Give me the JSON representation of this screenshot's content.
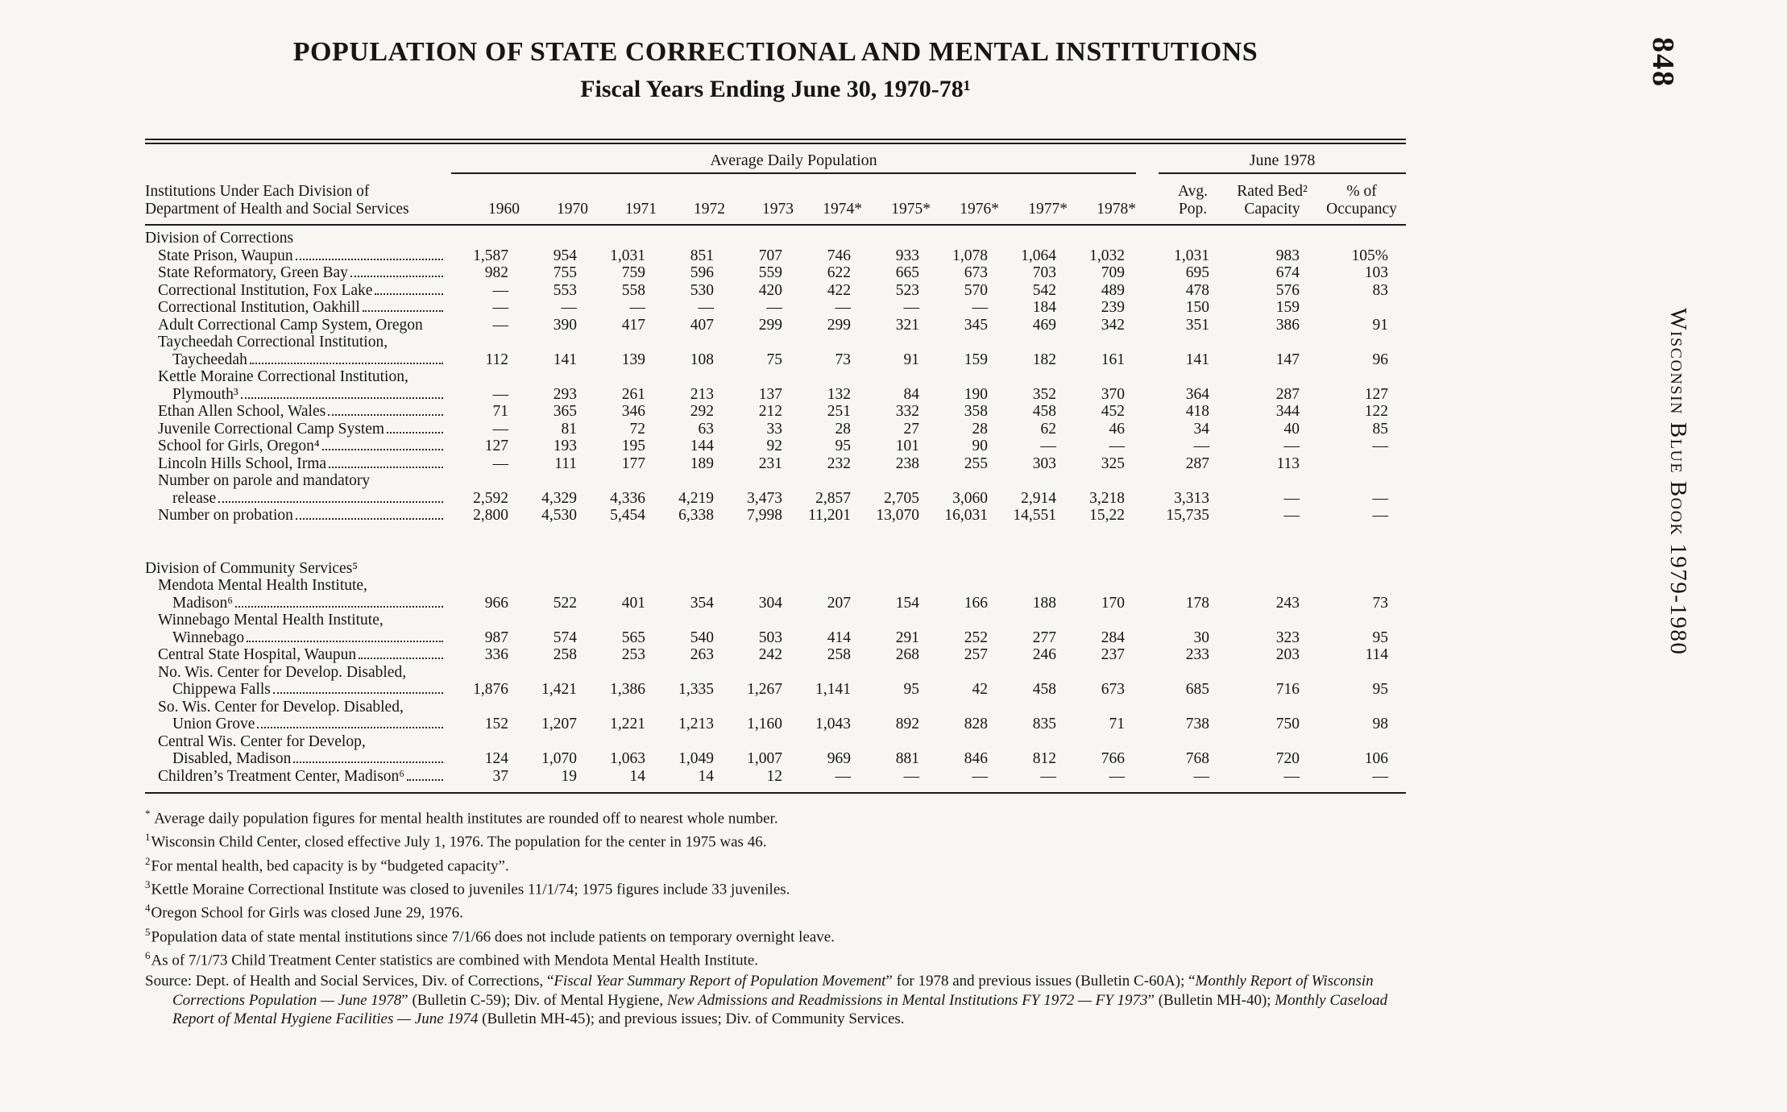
{
  "page": {
    "number": "848",
    "side_text": "Wisconsin Blue Book 1979-1980"
  },
  "colors": {
    "paper": "#f7f6f2",
    "ink": "#161616"
  },
  "title": "POPULATION OF STATE CORRECTIONAL AND MENTAL INSTITUTIONS",
  "subtitle": "Fiscal Years Ending June 30, 1970-78¹",
  "table": {
    "group_headers": [
      "Average Daily Population",
      "June 1978"
    ],
    "stub_header": [
      "Institutions Under Each Division of",
      "Department of Health and Social Services"
    ],
    "year_columns": [
      "1960",
      "1970",
      "1971",
      "1972",
      "1973",
      "1974*",
      "1975*",
      "1976*",
      "1977*",
      "1978*"
    ],
    "june_columns": [
      [
        "Avg.",
        "Pop."
      ],
      [
        "Rated Bed²",
        "Capacity"
      ],
      [
        "% of",
        "Occupancy"
      ]
    ],
    "sections": [
      {
        "heading": "Division of Corrections",
        "rows": [
          {
            "lines": [
              {
                "text": "State Prison, Waupun",
                "dots": true,
                "indent": 1
              }
            ],
            "values": [
              "1,587",
              "954",
              "1,031",
              "851",
              "707",
              "746",
              "933",
              "1,078",
              "1,064",
              "1,032",
              "1,031",
              "983",
              "105%"
            ]
          },
          {
            "lines": [
              {
                "text": "State Reformatory, Green Bay",
                "dots": true,
                "indent": 1
              }
            ],
            "values": [
              "982",
              "755",
              "759",
              "596",
              "559",
              "622",
              "665",
              "673",
              "703",
              "709",
              "695",
              "674",
              "103"
            ]
          },
          {
            "lines": [
              {
                "text": "Correctional Institution, Fox Lake",
                "dots": true,
                "indent": 1
              }
            ],
            "values": [
              "—",
              "553",
              "558",
              "530",
              "420",
              "422",
              "523",
              "570",
              "542",
              "489",
              "478",
              "576",
              "83"
            ]
          },
          {
            "lines": [
              {
                "text": "Correctional Institution, Oakhill",
                "dots": true,
                "indent": 1
              }
            ],
            "values": [
              "—",
              "—",
              "—",
              "—",
              "—",
              "—",
              "—",
              "—",
              "184",
              "239",
              "150",
              "159",
              ""
            ]
          },
          {
            "lines": [
              {
                "text": "Adult Correctional Camp System, Oregon",
                "dots": false,
                "indent": 1
              }
            ],
            "values": [
              "—",
              "390",
              "417",
              "407",
              "299",
              "299",
              "321",
              "345",
              "469",
              "342",
              "351",
              "386",
              "91"
            ]
          },
          {
            "lines": [
              {
                "text": "Taycheedah Correctional Institution,",
                "dots": false,
                "indent": 1
              },
              {
                "text": "Taycheedah",
                "dots": true,
                "indent": 2
              }
            ],
            "values": [
              "112",
              "141",
              "139",
              "108",
              "75",
              "73",
              "91",
              "159",
              "182",
              "161",
              "141",
              "147",
              "96"
            ]
          },
          {
            "lines": [
              {
                "text": "Kettle Moraine Correctional Institution,",
                "dots": false,
                "indent": 1
              },
              {
                "text": "Plymouth³",
                "dots": true,
                "indent": 2
              }
            ],
            "values": [
              "—",
              "293",
              "261",
              "213",
              "137",
              "132",
              "84",
              "190",
              "352",
              "370",
              "364",
              "287",
              "127"
            ]
          },
          {
            "lines": [
              {
                "text": "Ethan Allen School, Wales",
                "dots": true,
                "indent": 1
              }
            ],
            "values": [
              "71",
              "365",
              "346",
              "292",
              "212",
              "251",
              "332",
              "358",
              "458",
              "452",
              "418",
              "344",
              "122"
            ]
          },
          {
            "lines": [
              {
                "text": "Juvenile Correctional Camp System",
                "dots": true,
                "indent": 1
              }
            ],
            "values": [
              "—",
              "81",
              "72",
              "63",
              "33",
              "28",
              "27",
              "28",
              "62",
              "46",
              "34",
              "40",
              "85"
            ]
          },
          {
            "lines": [
              {
                "text": "School for Girls, Oregon⁴",
                "dots": true,
                "indent": 1
              }
            ],
            "values": [
              "127",
              "193",
              "195",
              "144",
              "92",
              "95",
              "101",
              "90",
              "—",
              "—",
              "—",
              "—",
              "—"
            ]
          },
          {
            "lines": [
              {
                "text": "Lincoln Hills School, Irma",
                "dots": true,
                "indent": 1
              }
            ],
            "values": [
              "—",
              "111",
              "177",
              "189",
              "231",
              "232",
              "238",
              "255",
              "303",
              "325",
              "287",
              "113",
              ""
            ]
          },
          {
            "lines": [
              {
                "text": "Number on parole and mandatory",
                "dots": false,
                "indent": 1
              },
              {
                "text": "release",
                "dots": true,
                "indent": 2
              }
            ],
            "values": [
              "2,592",
              "4,329",
              "4,336",
              "4,219",
              "3,473",
              "2,857",
              "2,705",
              "3,060",
              "2,914",
              "3,218",
              "3,313",
              "—",
              "—"
            ]
          },
          {
            "lines": [
              {
                "text": "Number on probation",
                "dots": true,
                "indent": 1
              }
            ],
            "values": [
              "2,800",
              "4,530",
              "5,454",
              "6,338",
              "7,998",
              "11,201",
              "13,070",
              "16,031",
              "14,551",
              "15,22",
              "15,735",
              "—",
              "—"
            ]
          }
        ]
      },
      {
        "heading": "Division of Community Services⁵",
        "rows": [
          {
            "lines": [
              {
                "text": "Mendota Mental Health Institute,",
                "dots": false,
                "indent": 1
              },
              {
                "text": "Madison⁶",
                "dots": true,
                "indent": 2
              }
            ],
            "values": [
              "966",
              "522",
              "401",
              "354",
              "304",
              "207",
              "154",
              "166",
              "188",
              "170",
              "178",
              "243",
              "73"
            ]
          },
          {
            "lines": [
              {
                "text": "Winnebago Mental Health Institute,",
                "dots": false,
                "indent": 1
              },
              {
                "text": "Winnebago",
                "dots": true,
                "indent": 2
              }
            ],
            "values": [
              "987",
              "574",
              "565",
              "540",
              "503",
              "414",
              "291",
              "252",
              "277",
              "284",
              "30",
              "323",
              "95"
            ]
          },
          {
            "lines": [
              {
                "text": "Central State Hospital, Waupun",
                "dots": true,
                "indent": 1
              }
            ],
            "values": [
              "336",
              "258",
              "253",
              "263",
              "242",
              "258",
              "268",
              "257",
              "246",
              "237",
              "233",
              "203",
              "114"
            ]
          },
          {
            "lines": [
              {
                "text": "No. Wis. Center for Develop. Disabled,",
                "dots": false,
                "indent": 1
              },
              {
                "text": "Chippewa Falls",
                "dots": true,
                "indent": 2
              }
            ],
            "values": [
              "1,876",
              "1,421",
              "1,386",
              "1,335",
              "1,267",
              "1,141",
              "95",
              "42",
              "458",
              "673",
              "685",
              "716",
              "95"
            ]
          },
          {
            "lines": [
              {
                "text": "So. Wis. Center for Develop. Disabled,",
                "dots": false,
                "indent": 1
              },
              {
                "text": "Union Grove",
                "dots": true,
                "indent": 2
              }
            ],
            "values": [
              "152",
              "1,207",
              "1,221",
              "1,213",
              "1,160",
              "1,043",
              "892",
              "828",
              "835",
              "71",
              "738",
              "750",
              "98"
            ]
          },
          {
            "lines": [
              {
                "text": "Central Wis. Center for Develop,",
                "dots": false,
                "indent": 1
              },
              {
                "text": "Disabled, Madison",
                "dots": true,
                "indent": 2
              }
            ],
            "values": [
              "124",
              "1,070",
              "1,063",
              "1,049",
              "1,007",
              "969",
              "881",
              "846",
              "812",
              "766",
              "768",
              "720",
              "106"
            ]
          },
          {
            "lines": [
              {
                "text": "Children’s Treatment Center, Madison⁶",
                "dots": true,
                "indent": 1
              }
            ],
            "values": [
              "37",
              "19",
              "14",
              "14",
              "12",
              "—",
              "—",
              "—",
              "—",
              "—",
              "—",
              "—",
              "—"
            ]
          }
        ]
      }
    ]
  },
  "footnotes": [
    {
      "marker": "*",
      "text": " Average daily population figures for mental health institutes are rounded off to nearest whole number."
    },
    {
      "marker": "1",
      "text": "Wisconsin Child Center, closed effective July 1, 1976. The population for the center in 1975 was 46."
    },
    {
      "marker": "2",
      "text": "For mental health, bed capacity is by “budgeted capacity”."
    },
    {
      "marker": "3",
      "text": "Kettle Moraine Correctional Institute was closed to juveniles 11/1/74; 1975 figures include 33 juveniles."
    },
    {
      "marker": "4",
      "text": "Oregon School for Girls was closed June 29, 1976."
    },
    {
      "marker": "5",
      "text": "Population data of state mental institutions since 7/1/66 does not include patients on temporary overnight leave."
    },
    {
      "marker": "6",
      "text": "As of 7/1/73 Child Treatment Center statistics are combined with Mendota Mental Health Institute."
    }
  ],
  "source_segments": [
    {
      "text": "Source: Dept. of Health and Social Services, Div. of Corrections, “",
      "italic": false
    },
    {
      "text": "Fiscal Year Summary Report of Population Movement",
      "italic": true
    },
    {
      "text": "” for 1978 and previous issues (Bulletin C-60A); “",
      "italic": false
    },
    {
      "text": "Monthly Report of Wisconsin Corrections Population — June 1978",
      "italic": true
    },
    {
      "text": "” (Bulletin C-59); Div. of Mental Hygiene, ",
      "italic": false
    },
    {
      "text": "New Admissions and Readmissions in Mental Institutions FY 1972 — FY 1973",
      "italic": true
    },
    {
      "text": "” (Bulletin MH-40); ",
      "italic": false
    },
    {
      "text": "Monthly Caseload Report of Mental Hygiene Facilities — June 1974",
      "italic": true
    },
    {
      "text": " (Bulletin MH-45); and previous issues; Div. of Community Services.",
      "italic": false
    }
  ]
}
